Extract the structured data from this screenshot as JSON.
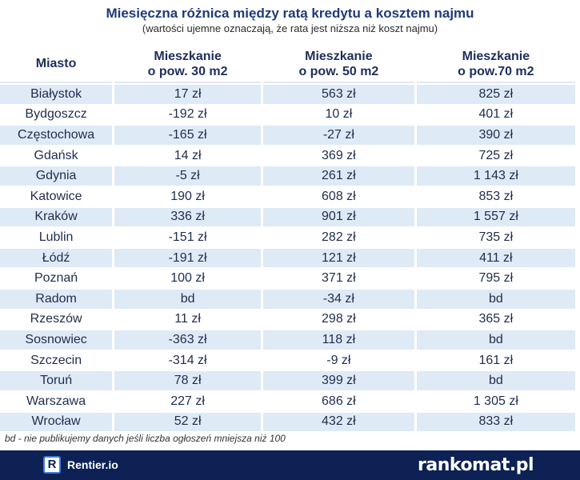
{
  "header": {
    "title": "Miesięczna różnica między ratą kredytu a kosztem najmu",
    "subtitle": "(wartości ujemne oznaczają, że rata jest niższa niż koszt najmu)"
  },
  "table": {
    "columns": [
      {
        "line1": "Miasto",
        "line2": ""
      },
      {
        "line1": "Mieszkanie",
        "line2": "o pow. 30 m2"
      },
      {
        "line1": "Mieszkanie",
        "line2": "o pow. 50 m2"
      },
      {
        "line1": "Mieszkanie",
        "line2": "o pow.70 m2"
      }
    ],
    "rows": [
      [
        "Białystok",
        "17 zł",
        "563 zł",
        "825 zł"
      ],
      [
        "Bydgoszcz",
        "-192 zł",
        "10 zł",
        "401 zł"
      ],
      [
        "Częstochowa",
        "-165 zł",
        "-27 zł",
        "390 zł"
      ],
      [
        "Gdańsk",
        "14 zł",
        "369 zł",
        "725 zł"
      ],
      [
        "Gdynia",
        "-5 zł",
        "261 zł",
        "1 143 zł"
      ],
      [
        "Katowice",
        "190 zł",
        "608 zł",
        "853 zł"
      ],
      [
        "Kraków",
        "336 zł",
        "901 zł",
        "1 557 zł"
      ],
      [
        "Lublin",
        "-151 zł",
        "282 zł",
        "735 zł"
      ],
      [
        "Łódź",
        "-191 zł",
        "121 zł",
        "411 zł"
      ],
      [
        "Poznań",
        "100 zł",
        "371 zł",
        "795 zł"
      ],
      [
        "Radom",
        "bd",
        "-34 zł",
        "bd"
      ],
      [
        "Rzeszów",
        "11 zł",
        "298 zł",
        "365 zł"
      ],
      [
        "Sosnowiec",
        "-363 zł",
        "118 zł",
        "bd"
      ],
      [
        "Szczecin",
        "-314 zł",
        "-9 zł",
        "161 zł"
      ],
      [
        "Toruń",
        "78 zł",
        "399 zł",
        "bd"
      ],
      [
        "Warszawa",
        "227 zł",
        "686 zł",
        "1 305 zł"
      ],
      [
        "Wrocław",
        "52 zł",
        "432 zł",
        "833 zł"
      ]
    ]
  },
  "footnote": "bd - nie publikujemy danych jeśli liczba ogłoszeń mniejsza niż 100",
  "footer": {
    "rentier_icon_letter": "R",
    "rentier_label": "Rentier.io",
    "rankomat_label": "rankomat.pl"
  },
  "colors": {
    "title": "#1e3a7a",
    "row_stripe": "#dfeaf7",
    "footer_bg": "#0d2154"
  }
}
